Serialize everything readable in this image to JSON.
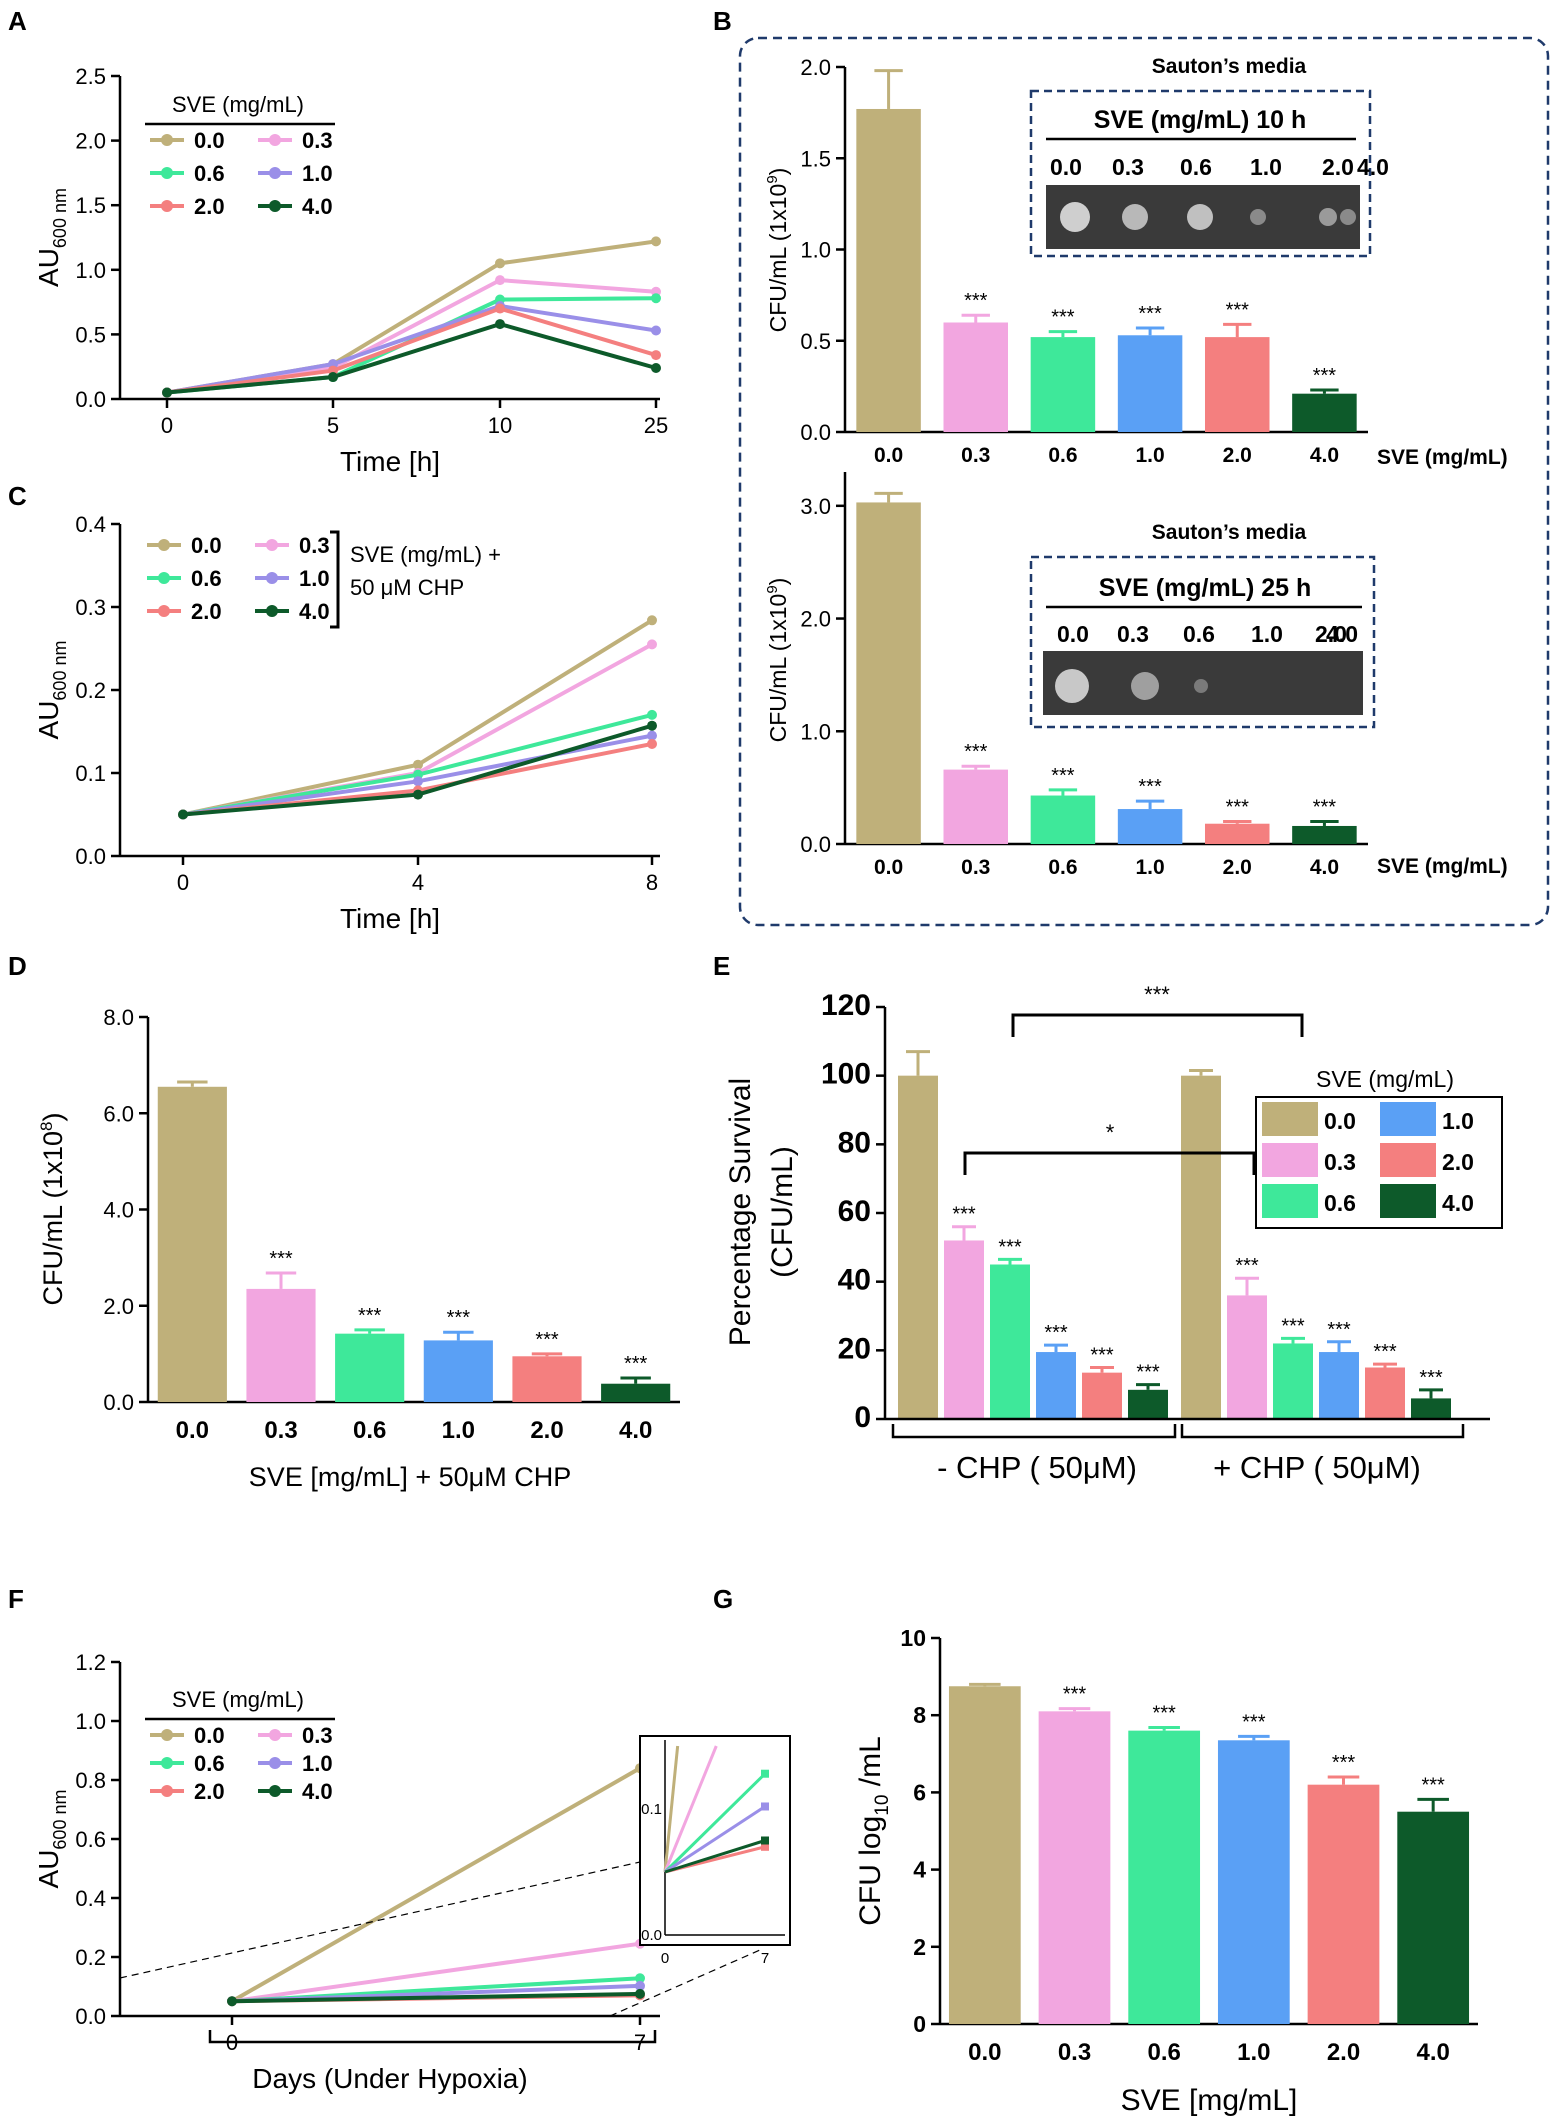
{
  "colors": {
    "c00": "#bfb07a",
    "c03": "#f2a6e0",
    "c06": "#3ee89a",
    "c10": "#5aa0f5",
    "c20": "#f47f7f",
    "c40": "#0d5a2a",
    "l10": "#9a8fe8",
    "axis": "#000000",
    "frame": "#1f3a6b"
  },
  "panel_labels": [
    "A",
    "B",
    "C",
    "D",
    "E",
    "F",
    "G"
  ],
  "chart_data": [
    {
      "id": "A",
      "type": "line",
      "xlabel": "Time [h]",
      "ylabel": "AU",
      "ylabel_sub": "600 nm",
      "x": [
        0,
        5,
        10,
        25
      ],
      "x_ticks": [
        "0",
        "5",
        "10",
        "25"
      ],
      "y_ticks": [
        "0.0",
        "0.5",
        "1.0",
        "1.5",
        "2.0",
        "2.5"
      ],
      "ylim": [
        0,
        2.5
      ],
      "legend_title": "SVE (mg/mL)",
      "series": [
        {
          "name": "0.0",
          "color": "c00",
          "values": [
            0.05,
            0.27,
            1.05,
            1.22
          ]
        },
        {
          "name": "0.3",
          "color": "c03",
          "values": [
            0.05,
            0.24,
            0.92,
            0.83
          ]
        },
        {
          "name": "0.6",
          "color": "c06",
          "values": [
            0.05,
            0.17,
            0.77,
            0.78
          ]
        },
        {
          "name": "1.0",
          "color": "l10",
          "values": [
            0.05,
            0.27,
            0.72,
            0.53
          ]
        },
        {
          "name": "2.0",
          "color": "c20",
          "values": [
            0.05,
            0.22,
            0.7,
            0.34
          ]
        },
        {
          "name": "4.0",
          "color": "c40",
          "values": [
            0.05,
            0.17,
            0.58,
            0.24
          ]
        }
      ]
    },
    {
      "id": "B1",
      "type": "bar",
      "title": "Sauton’s media",
      "ylabel": "CFU/mL (1x10",
      "ylabel_exp": "9",
      "xlabel_tail": "SVE (mg/mL)",
      "categories": [
        "0.0",
        "0.3",
        "0.6",
        "1.0",
        "2.0",
        "4.0"
      ],
      "values": [
        1.77,
        0.6,
        0.52,
        0.53,
        0.52,
        0.21
      ],
      "errors": [
        0.21,
        0.04,
        0.03,
        0.04,
        0.07,
        0.02
      ],
      "stars": [
        "",
        "***",
        "***",
        "***",
        "***",
        "***"
      ],
      "y_ticks": [
        "0.0",
        "0.5",
        "1.0",
        "1.5",
        "2.0"
      ],
      "ylim": [
        0,
        2.0
      ],
      "inset_title": "SVE (mg/mL)  10 h",
      "inset_labels": [
        "0.0",
        "0.3",
        "0.6",
        "1.0",
        "2.0",
        "4.0"
      ]
    },
    {
      "id": "B2",
      "type": "bar",
      "title": "Sauton’s media",
      "ylabel": "CFU/mL (1x10",
      "ylabel_exp": "9",
      "xlabel_tail": "SVE (mg/mL)",
      "categories": [
        "0.0",
        "0.3",
        "0.6",
        "1.0",
        "2.0",
        "4.0"
      ],
      "values": [
        3.03,
        0.66,
        0.43,
        0.31,
        0.18,
        0.16
      ],
      "errors": [
        0.08,
        0.03,
        0.05,
        0.07,
        0.02,
        0.04
      ],
      "stars": [
        "",
        "***",
        "***",
        "***",
        "***",
        "***"
      ],
      "y_ticks": [
        "0.0",
        "1.0",
        "2.0",
        "3.0"
      ],
      "ylim": [
        0,
        3.3
      ],
      "inset_title": "SVE (mg/mL)  25 h",
      "inset_labels": [
        "0.0",
        "0.3",
        "0.6",
        "1.0",
        "2.0",
        "4.0"
      ]
    },
    {
      "id": "C",
      "type": "line",
      "xlabel": "Time [h]",
      "ylabel": "AU",
      "ylabel_sub": "600 nm",
      "x": [
        0,
        4,
        8
      ],
      "x_ticks": [
        "0",
        "4",
        "8"
      ],
      "y_ticks": [
        "0.0",
        "0.1",
        "0.2",
        "0.3",
        "0.4"
      ],
      "ylim": [
        0,
        0.4
      ],
      "legend_note": [
        "SVE (mg/mL) +",
        "50 μM CHP"
      ],
      "series": [
        {
          "name": "0.0",
          "color": "c00",
          "values": [
            0.05,
            0.11,
            0.284
          ]
        },
        {
          "name": "0.3",
          "color": "c03",
          "values": [
            0.05,
            0.1,
            0.255
          ]
        },
        {
          "name": "0.6",
          "color": "c06",
          "values": [
            0.05,
            0.098,
            0.17
          ]
        },
        {
          "name": "1.0",
          "color": "l10",
          "values": [
            0.05,
            0.09,
            0.145
          ]
        },
        {
          "name": "2.0",
          "color": "c20",
          "values": [
            0.05,
            0.079,
            0.135
          ]
        },
        {
          "name": "4.0",
          "color": "c40",
          "values": [
            0.05,
            0.074,
            0.157
          ]
        }
      ]
    },
    {
      "id": "D",
      "type": "bar",
      "xlabel": "SVE [mg/mL] + 50μM CHP",
      "ylabel": "CFU/mL (1x10",
      "ylabel_exp": "8",
      "categories": [
        "0.0",
        "0.3",
        "0.6",
        "1.0",
        "2.0",
        "4.0"
      ],
      "values": [
        6.55,
        2.35,
        1.42,
        1.28,
        0.95,
        0.38
      ],
      "errors": [
        0.1,
        0.33,
        0.08,
        0.17,
        0.05,
        0.12
      ],
      "stars": [
        "",
        "***",
        "***",
        "***",
        "***",
        "***"
      ],
      "y_ticks": [
        "0.0",
        "2.0",
        "4.0",
        "6.0",
        "8.0"
      ],
      "ylim": [
        0,
        8.0
      ]
    },
    {
      "id": "E",
      "type": "bar",
      "ylabel": "Percentage Survival",
      "ylabel2": "(CFU/mL)",
      "groups": [
        "- CHP ( 50μM)",
        "+ CHP ( 50μM)"
      ],
      "categories": [
        "0.0",
        "0.3",
        "0.6",
        "1.0",
        "2.0",
        "4.0"
      ],
      "series": [
        {
          "name": "- CHP ( 50μM)",
          "values": [
            100,
            52,
            45,
            19.5,
            13.5,
            8.5
          ],
          "errors": [
            7,
            4,
            1.5,
            2,
            1.5,
            1.5
          ],
          "stars": [
            "",
            "***",
            "***",
            "***",
            "***",
            "***"
          ]
        },
        {
          "name": "+ CHP ( 50μM)",
          "values": [
            100,
            36,
            22,
            19.5,
            15,
            6
          ],
          "errors": [
            1.5,
            5,
            1.5,
            3,
            1,
            2.5
          ],
          "stars": [
            "",
            "***",
            "***",
            "***",
            "***",
            "***"
          ]
        }
      ],
      "y_ticks": [
        "0",
        "20",
        "40",
        "60",
        "80",
        "100",
        "120"
      ],
      "ylim": [
        0,
        120
      ],
      "legend_title": "SVE (mg/mL)",
      "brackets": [
        "*",
        "***"
      ]
    },
    {
      "id": "F",
      "type": "line",
      "xlabel": "Days (Under Hypoxia)",
      "ylabel": "AU",
      "ylabel_sub": "600 nm",
      "x": [
        0,
        7
      ],
      "x_ticks": [
        "0",
        "7"
      ],
      "y_ticks": [
        "0.0",
        "0.2",
        "0.4",
        "0.6",
        "0.8",
        "1.0",
        "1.2"
      ],
      "ylim": [
        0,
        1.2
      ],
      "legend_title": "SVE (mg/mL)",
      "series": [
        {
          "name": "0.0",
          "color": "c00",
          "values": [
            0.05,
            0.84
          ]
        },
        {
          "name": "0.3",
          "color": "c03",
          "values": [
            0.05,
            0.245
          ]
        },
        {
          "name": "0.6",
          "color": "c06",
          "values": [
            0.05,
            0.128
          ]
        },
        {
          "name": "1.0",
          "color": "l10",
          "values": [
            0.05,
            0.102
          ]
        },
        {
          "name": "2.0",
          "color": "c20",
          "values": [
            0.05,
            0.07
          ]
        },
        {
          "name": "4.0",
          "color": "c40",
          "values": [
            0.05,
            0.075
          ]
        }
      ],
      "inset": {
        "y_ticks": [
          "0.0",
          "0.1"
        ],
        "x_ticks": [
          "0",
          "7"
        ],
        "ylim": [
          0,
          0.15
        ]
      }
    },
    {
      "id": "G",
      "type": "bar",
      "xlabel": "SVE [mg/mL]",
      "ylabel": "CFU log",
      "ylabel_sub": "10",
      "ylabel_tail": " /mL",
      "categories": [
        "0.0",
        "0.3",
        "0.6",
        "1.0",
        "2.0",
        "4.0"
      ],
      "values": [
        8.75,
        8.1,
        7.6,
        7.35,
        6.2,
        5.5
      ],
      "errors": [
        0.05,
        0.07,
        0.08,
        0.1,
        0.2,
        0.32
      ],
      "stars": [
        "",
        "***",
        "***",
        "***",
        "***",
        "***"
      ],
      "y_ticks": [
        "0",
        "2",
        "4",
        "6",
        "8",
        "10"
      ],
      "ylim": [
        0,
        10
      ]
    }
  ]
}
